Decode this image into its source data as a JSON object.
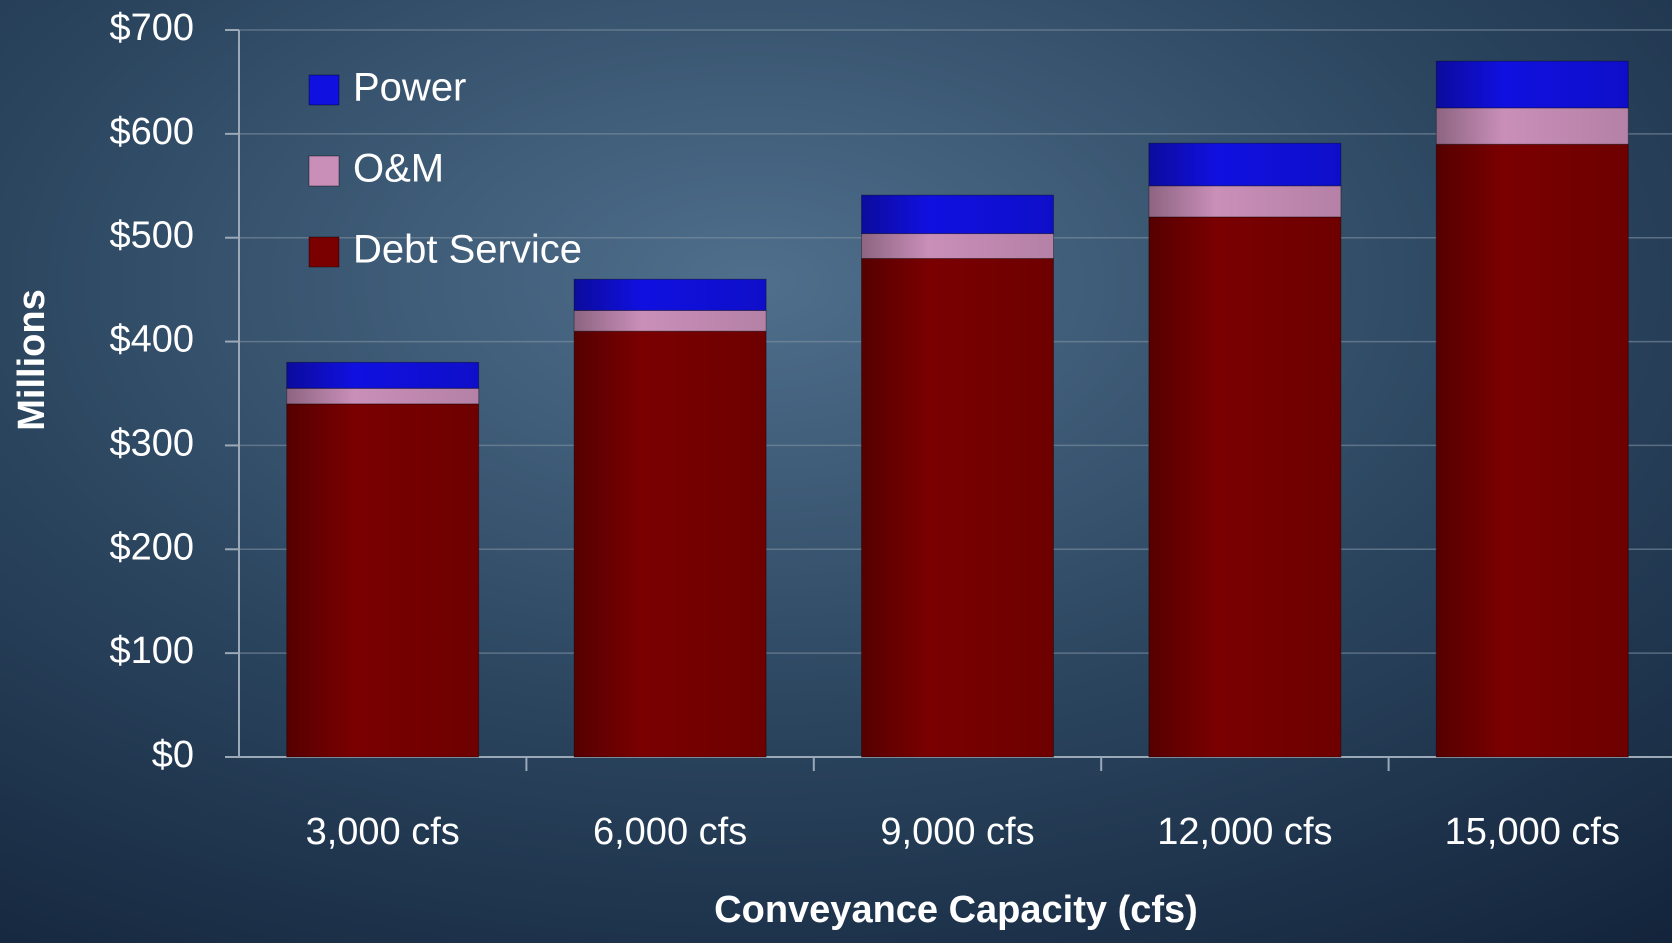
{
  "chart_data": {
    "type": "stacked_bar",
    "x_label": "Conveyance Capacity (cfs)",
    "y_label": "Millions",
    "categories": [
      "3,000 cfs",
      "6,000 cfs",
      "9,000 cfs",
      "12,000 cfs",
      "15,000 cfs"
    ],
    "series": [
      {
        "name": "Debt Service",
        "color": "#7a0000",
        "values": [
          340,
          410,
          480,
          520,
          590
        ]
      },
      {
        "name": "O&M",
        "color": "#c98fb8",
        "values": [
          15,
          20,
          24,
          30,
          35
        ]
      },
      {
        "name": "Power",
        "color": "#1010e0",
        "values": [
          25,
          30,
          37,
          41,
          45
        ]
      }
    ],
    "ylim": [
      0,
      700
    ],
    "yticks": [
      {
        "value": 0,
        "label": "$0"
      },
      {
        "value": 100,
        "label": "$100"
      },
      {
        "value": 200,
        "label": "$200"
      },
      {
        "value": 300,
        "label": "$300"
      },
      {
        "value": 400,
        "label": "$400"
      },
      {
        "value": 500,
        "label": "$500"
      },
      {
        "value": 600,
        "label": "$600"
      },
      {
        "value": 700,
        "label": "$700"
      }
    ],
    "grid": true,
    "legend": "upper left"
  }
}
